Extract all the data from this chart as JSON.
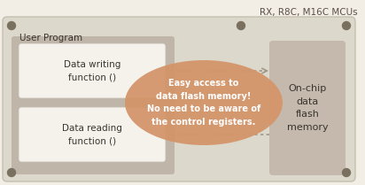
{
  "bg_color": "#f2ede5",
  "outer_box_color": "#ddd8cc",
  "outer_box_edge": "#c5bfb2",
  "inner_box_color": "#bfb5a8",
  "func_box_color": "#f5f2ec",
  "func_box_edge": "#c5bfb2",
  "memory_box_color": "#c4b9ac",
  "ellipse_color": "#d4956a",
  "title_text": "RX, R8C, M16C MCUs",
  "user_program_text": "User Program",
  "write_func_text": "Data writing\nfunction ()",
  "read_func_text": "Data reading\nfunction ()",
  "memory_text": "On-chip\ndata\nflash\nmemory",
  "ellipse_text": "Easy access to\ndata flash memory!\nNo need to be aware of\nthe control registers.",
  "dot_color": "#7a7060",
  "arrow_color": "#a09888",
  "text_color": "#3a3530",
  "ellipse_text_color": "#ffffff",
  "title_color": "#5a5048",
  "figw": 4.12,
  "figh": 2.09,
  "dpi": 100
}
